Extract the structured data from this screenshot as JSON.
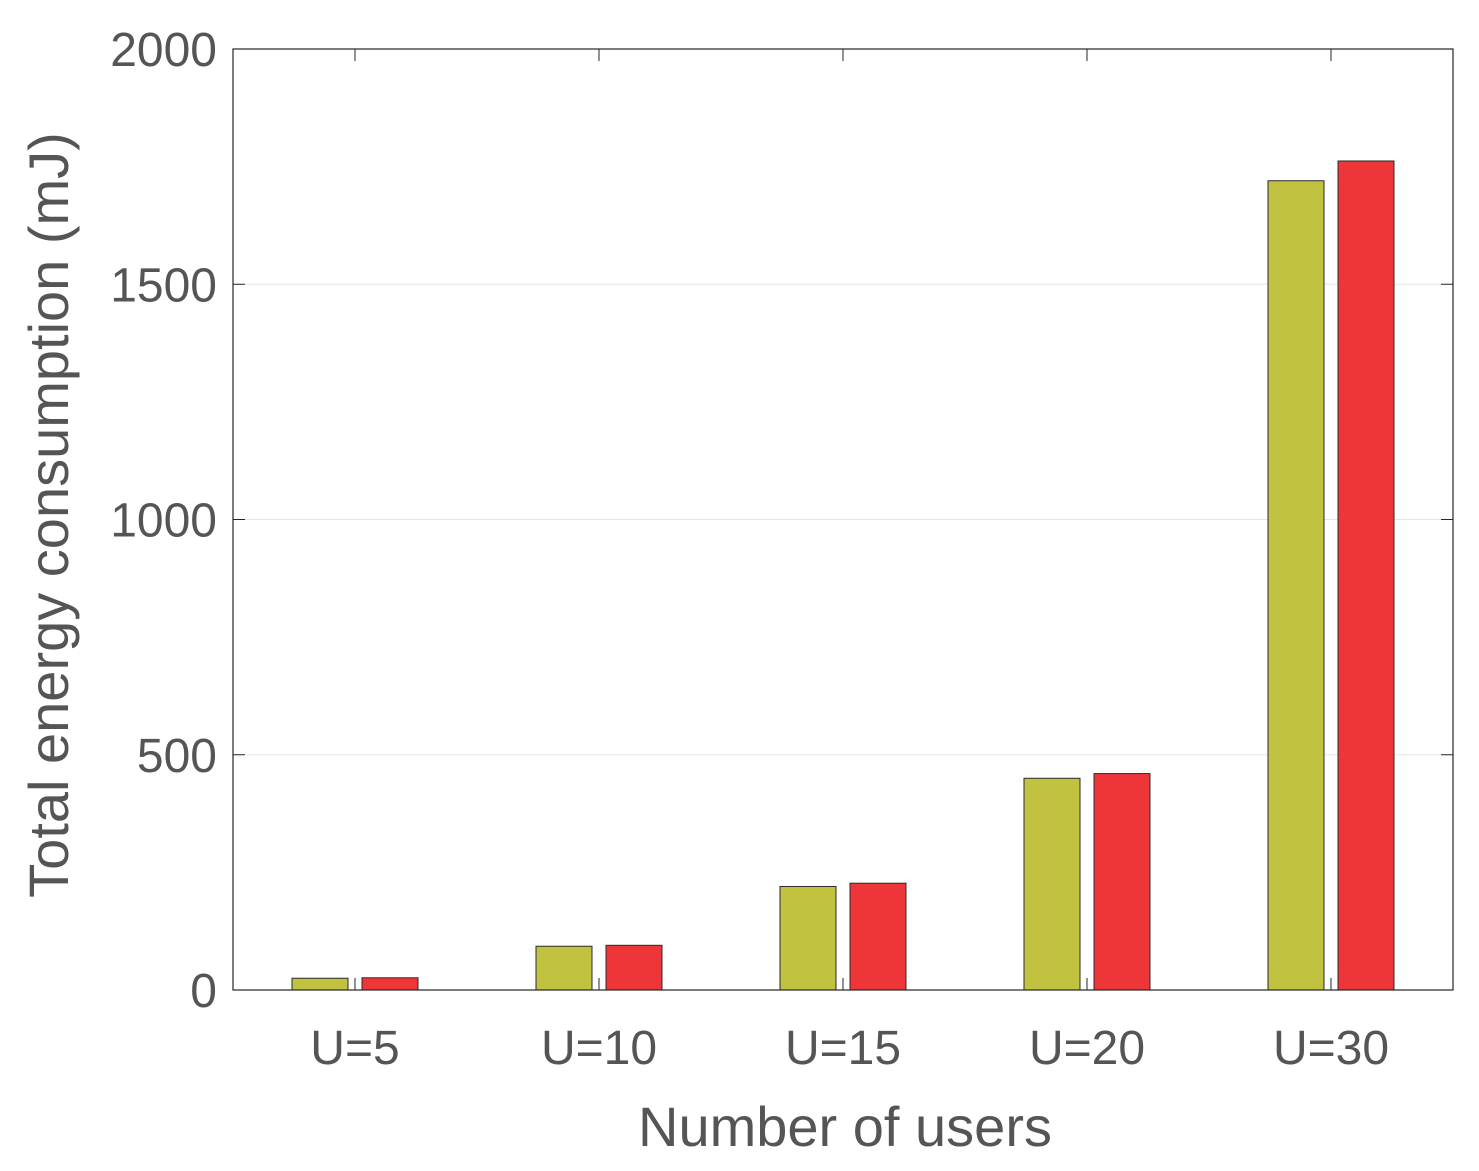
{
  "chart_data": {
    "type": "bar",
    "title": "",
    "xlabel": "Number of users",
    "ylabel": "Total energy consumption (mJ)",
    "categories": [
      "U=5",
      "U=10",
      "U=15",
      "U=20",
      "U=30"
    ],
    "ylim": [
      0,
      2000
    ],
    "yticks": [
      0,
      500,
      1000,
      1500,
      2000
    ],
    "grid": true,
    "legend": "none",
    "series": [
      {
        "values": [
          25,
          93,
          220,
          450,
          1720
        ],
        "color": "#c0c240"
      },
      {
        "values": [
          26,
          95,
          227,
          460,
          1762
        ],
        "color": "#ee3538"
      }
    ]
  }
}
